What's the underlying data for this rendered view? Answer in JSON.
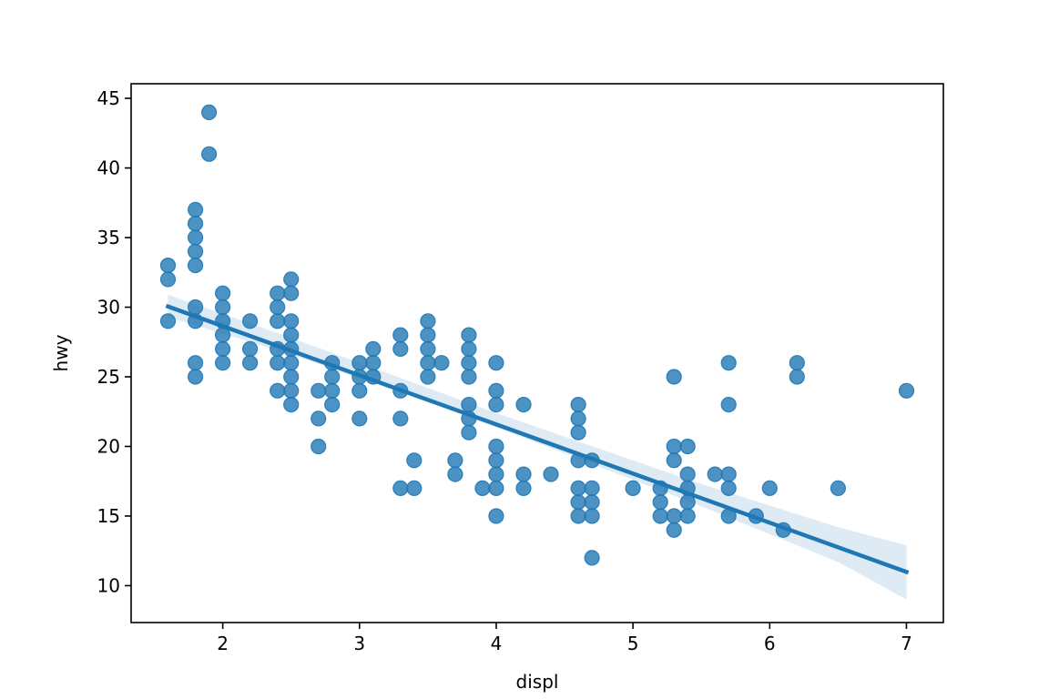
{
  "chart_data": {
    "type": "scatter",
    "xlabel": "displ",
    "ylabel": "hwy",
    "xlim": [
      1.33,
      7.27
    ],
    "ylim": [
      7.35,
      46.05
    ],
    "xticks": [
      2,
      3,
      4,
      5,
      6,
      7
    ],
    "yticks": [
      10,
      15,
      20,
      25,
      30,
      35,
      40,
      45
    ],
    "grid": false,
    "point_color": "#1f77b4",
    "points": [
      [
        1.6,
        33
      ],
      [
        1.6,
        32
      ],
      [
        1.6,
        29
      ],
      [
        1.8,
        37
      ],
      [
        1.8,
        36
      ],
      [
        1.8,
        35
      ],
      [
        1.8,
        34
      ],
      [
        1.8,
        33
      ],
      [
        1.8,
        30
      ],
      [
        1.8,
        29
      ],
      [
        1.8,
        26
      ],
      [
        1.8,
        25
      ],
      [
        1.9,
        44
      ],
      [
        1.9,
        41
      ],
      [
        2.0,
        31
      ],
      [
        2.0,
        30
      ],
      [
        2.0,
        29
      ],
      [
        2.0,
        28
      ],
      [
        2.0,
        27
      ],
      [
        2.0,
        26
      ],
      [
        2.2,
        29
      ],
      [
        2.2,
        27
      ],
      [
        2.2,
        26
      ],
      [
        2.4,
        31
      ],
      [
        2.4,
        30
      ],
      [
        2.4,
        29
      ],
      [
        2.4,
        27
      ],
      [
        2.4,
        26
      ],
      [
        2.4,
        24
      ],
      [
        2.5,
        32
      ],
      [
        2.5,
        31
      ],
      [
        2.5,
        29
      ],
      [
        2.5,
        28
      ],
      [
        2.5,
        27
      ],
      [
        2.5,
        26
      ],
      [
        2.5,
        25
      ],
      [
        2.5,
        24
      ],
      [
        2.5,
        23
      ],
      [
        2.7,
        24
      ],
      [
        2.7,
        22
      ],
      [
        2.7,
        20
      ],
      [
        2.8,
        26
      ],
      [
        2.8,
        25
      ],
      [
        2.8,
        24
      ],
      [
        2.8,
        23
      ],
      [
        3.0,
        26
      ],
      [
        3.0,
        25
      ],
      [
        3.0,
        24
      ],
      [
        3.0,
        22
      ],
      [
        3.1,
        27
      ],
      [
        3.1,
        26
      ],
      [
        3.1,
        25
      ],
      [
        3.3,
        28
      ],
      [
        3.3,
        27
      ],
      [
        3.3,
        24
      ],
      [
        3.3,
        22
      ],
      [
        3.3,
        17
      ],
      [
        3.4,
        19
      ],
      [
        3.4,
        17
      ],
      [
        3.5,
        29
      ],
      [
        3.5,
        28
      ],
      [
        3.5,
        27
      ],
      [
        3.5,
        26
      ],
      [
        3.5,
        25
      ],
      [
        3.6,
        26
      ],
      [
        3.7,
        19
      ],
      [
        3.7,
        18
      ],
      [
        3.8,
        28
      ],
      [
        3.8,
        27
      ],
      [
        3.8,
        26
      ],
      [
        3.8,
        25
      ],
      [
        3.8,
        23
      ],
      [
        3.8,
        22
      ],
      [
        3.8,
        21
      ],
      [
        3.9,
        17
      ],
      [
        4.0,
        26
      ],
      [
        4.0,
        24
      ],
      [
        4.0,
        23
      ],
      [
        4.0,
        20
      ],
      [
        4.0,
        19
      ],
      [
        4.0,
        18
      ],
      [
        4.0,
        17
      ],
      [
        4.0,
        15
      ],
      [
        4.2,
        23
      ],
      [
        4.2,
        18
      ],
      [
        4.2,
        17
      ],
      [
        4.4,
        18
      ],
      [
        4.6,
        23
      ],
      [
        4.6,
        22
      ],
      [
        4.6,
        21
      ],
      [
        4.6,
        19
      ],
      [
        4.6,
        17
      ],
      [
        4.6,
        16
      ],
      [
        4.6,
        15
      ],
      [
        4.7,
        19
      ],
      [
        4.7,
        17
      ],
      [
        4.7,
        16
      ],
      [
        4.7,
        15
      ],
      [
        4.7,
        12
      ],
      [
        5.0,
        17
      ],
      [
        5.2,
        17
      ],
      [
        5.2,
        16
      ],
      [
        5.2,
        15
      ],
      [
        5.3,
        25
      ],
      [
        5.3,
        20
      ],
      [
        5.3,
        19
      ],
      [
        5.3,
        15
      ],
      [
        5.3,
        14
      ],
      [
        5.4,
        20
      ],
      [
        5.4,
        18
      ],
      [
        5.4,
        17
      ],
      [
        5.4,
        16
      ],
      [
        5.4,
        15
      ],
      [
        5.6,
        18
      ],
      [
        5.7,
        26
      ],
      [
        5.7,
        23
      ],
      [
        5.7,
        18
      ],
      [
        5.7,
        17
      ],
      [
        5.7,
        15
      ],
      [
        5.9,
        15
      ],
      [
        6.0,
        17
      ],
      [
        6.1,
        14
      ],
      [
        6.2,
        26
      ],
      [
        6.2,
        25
      ],
      [
        6.5,
        17
      ],
      [
        7.0,
        24
      ]
    ],
    "regression": {
      "intercept": 35.7,
      "slope": -3.53,
      "x_range": [
        1.6,
        7.0
      ]
    },
    "confidence_band": {
      "x": [
        1.6,
        2.5,
        3.5,
        4.0,
        4.5,
        5.5,
        6.5,
        7.0
      ],
      "lower": [
        29.3,
        26.6,
        23.2,
        21.4,
        19.5,
        15.7,
        11.7,
        9.0
      ],
      "upper": [
        30.9,
        27.8,
        24.2,
        22.4,
        20.7,
        17.3,
        14.2,
        12.9
      ]
    }
  }
}
